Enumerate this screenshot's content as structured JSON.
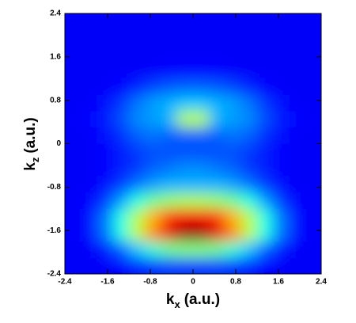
{
  "chart_data": {
    "type": "heatmap",
    "xlabel": "k",
    "xlabel_sub": "x",
    "xlabel_unit": "(a.u.)",
    "ylabel": "k",
    "ylabel_sub": "z",
    "ylabel_unit": "(a.u.)",
    "colormap": "jet",
    "xlim": [
      -2.4,
      2.4
    ],
    "ylim": [
      -2.4,
      2.4
    ],
    "xticks": [
      -2.4,
      -1.6,
      -0.8,
      0,
      0.8,
      1.6,
      2.4
    ],
    "yticks": [
      -2.4,
      -1.6,
      -0.8,
      0,
      0.8,
      1.6,
      2.4
    ],
    "x": [
      -2.25,
      -1.95,
      -1.65,
      -1.35,
      -1.05,
      -0.75,
      -0.45,
      -0.15,
      0.15,
      0.45,
      0.75,
      1.05,
      1.35,
      1.65,
      1.95,
      2.25
    ],
    "y": [
      2.25,
      1.95,
      1.65,
      1.35,
      1.05,
      0.75,
      0.45,
      0.15,
      -0.15,
      -0.45,
      -0.75,
      -1.05,
      -1.35,
      -1.65,
      -1.95,
      -2.25
    ],
    "z": [
      [
        0.12,
        0.12,
        0.12,
        0.12,
        0.12,
        0.12,
        0.12,
        0.12,
        0.12,
        0.12,
        0.12,
        0.12,
        0.12,
        0.12,
        0.12,
        0.12
      ],
      [
        0.12,
        0.12,
        0.12,
        0.12,
        0.12,
        0.12,
        0.12,
        0.12,
        0.12,
        0.12,
        0.12,
        0.12,
        0.12,
        0.12,
        0.12,
        0.12
      ],
      [
        0.12,
        0.12,
        0.12,
        0.12,
        0.12,
        0.12,
        0.12,
        0.12,
        0.12,
        0.12,
        0.12,
        0.12,
        0.12,
        0.12,
        0.12,
        0.12
      ],
      [
        0.12,
        0.12,
        0.12,
        0.12,
        0.12,
        0.12,
        0.13,
        0.13,
        0.13,
        0.13,
        0.12,
        0.12,
        0.12,
        0.12,
        0.12,
        0.12
      ],
      [
        0.12,
        0.12,
        0.12,
        0.13,
        0.16,
        0.19,
        0.21,
        0.22,
        0.22,
        0.21,
        0.19,
        0.16,
        0.13,
        0.12,
        0.12,
        0.12
      ],
      [
        0.12,
        0.12,
        0.14,
        0.18,
        0.24,
        0.28,
        0.3,
        0.32,
        0.32,
        0.3,
        0.28,
        0.24,
        0.18,
        0.14,
        0.12,
        0.12
      ],
      [
        0.12,
        0.13,
        0.15,
        0.2,
        0.26,
        0.28,
        0.3,
        0.55,
        0.55,
        0.3,
        0.28,
        0.26,
        0.2,
        0.15,
        0.13,
        0.12
      ],
      [
        0.12,
        0.12,
        0.14,
        0.17,
        0.22,
        0.24,
        0.22,
        0.22,
        0.22,
        0.22,
        0.24,
        0.22,
        0.17,
        0.14,
        0.12,
        0.12
      ],
      [
        0.12,
        0.12,
        0.13,
        0.15,
        0.18,
        0.2,
        0.2,
        0.2,
        0.2,
        0.2,
        0.2,
        0.18,
        0.15,
        0.13,
        0.12,
        0.12
      ],
      [
        0.12,
        0.12,
        0.13,
        0.15,
        0.18,
        0.22,
        0.24,
        0.26,
        0.26,
        0.24,
        0.22,
        0.18,
        0.15,
        0.13,
        0.12,
        0.12
      ],
      [
        0.12,
        0.12,
        0.14,
        0.18,
        0.24,
        0.28,
        0.3,
        0.3,
        0.3,
        0.3,
        0.28,
        0.24,
        0.18,
        0.14,
        0.12,
        0.12
      ],
      [
        0.12,
        0.13,
        0.18,
        0.28,
        0.4,
        0.48,
        0.52,
        0.54,
        0.54,
        0.52,
        0.48,
        0.4,
        0.28,
        0.18,
        0.13,
        0.12
      ],
      [
        0.12,
        0.14,
        0.24,
        0.4,
        0.55,
        0.7,
        0.82,
        0.88,
        0.88,
        0.82,
        0.7,
        0.55,
        0.4,
        0.24,
        0.14,
        0.12
      ],
      [
        0.12,
        0.14,
        0.24,
        0.4,
        0.56,
        0.74,
        0.9,
        0.98,
        0.98,
        0.9,
        0.74,
        0.56,
        0.4,
        0.24,
        0.14,
        0.12
      ],
      [
        0.12,
        0.12,
        0.15,
        0.22,
        0.32,
        0.42,
        0.48,
        0.5,
        0.5,
        0.48,
        0.42,
        0.32,
        0.22,
        0.15,
        0.12,
        0.12
      ],
      [
        0.12,
        0.12,
        0.12,
        0.13,
        0.15,
        0.17,
        0.18,
        0.18,
        0.18,
        0.18,
        0.17,
        0.15,
        0.13,
        0.12,
        0.12,
        0.12
      ]
    ]
  }
}
